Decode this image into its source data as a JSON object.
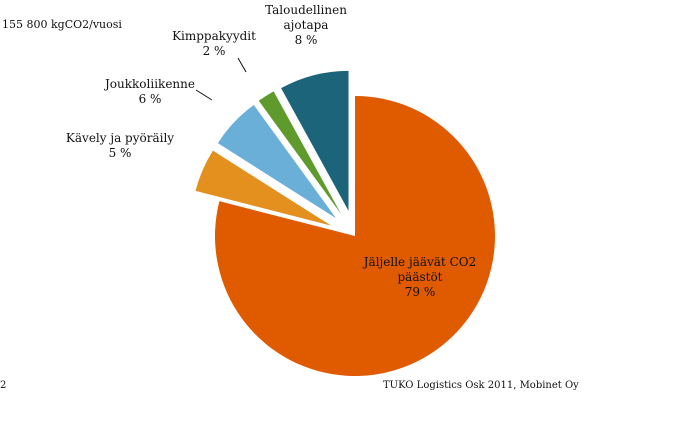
{
  "header": {
    "total": "155 800 kgCO2/vuosi"
  },
  "footer": {
    "left": "2",
    "source": "TUKO Logistics Osk 2011, Mobinet Oy"
  },
  "chart_data": {
    "type": "pie",
    "start_angle_deg": 0,
    "direction": "clockwise",
    "slices": [
      {
        "name": "Jäljelle jäävät CO2 päästöt",
        "label_lines": [
          "Jäljelle jäävät CO2",
          "päästöt"
        ],
        "value": 79,
        "value_label": "79 %",
        "color": "#e05a00",
        "exploded": false
      },
      {
        "name": "Kävely ja pyöräily",
        "label_lines": [
          "Kävely ja pyöräily"
        ],
        "value": 5,
        "value_label": "5 %",
        "color": "#e3901e",
        "exploded": true
      },
      {
        "name": "Joukkoliikenne",
        "label_lines": [
          "Joukkoliikenne"
        ],
        "value": 6,
        "value_label": "6 %",
        "color": "#6aafd8",
        "exploded": true
      },
      {
        "name": "Kimppakyydit",
        "label_lines": [
          "Kimppakyydit"
        ],
        "value": 2,
        "value_label": "2 %",
        "color": "#5f9a2c",
        "exploded": true
      },
      {
        "name": "Taloudellinen ajotapa",
        "label_lines": [
          "Taloudellinen",
          "ajotapa"
        ],
        "value": 8,
        "value_label": "8 %",
        "color": "#1c6479",
        "exploded": true
      }
    ]
  }
}
